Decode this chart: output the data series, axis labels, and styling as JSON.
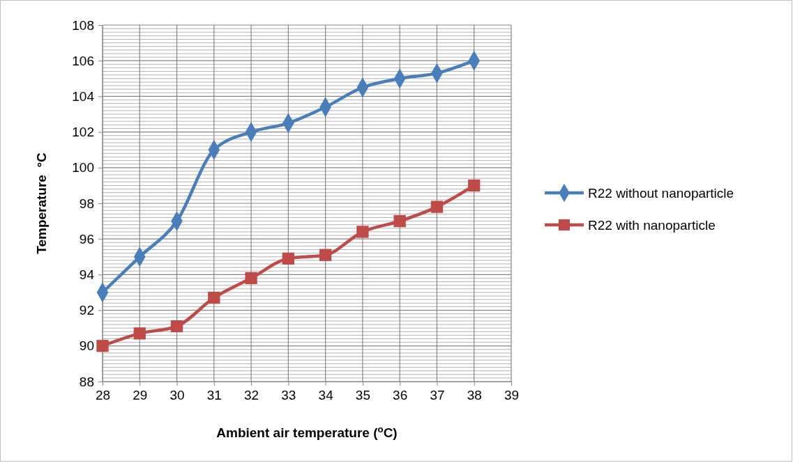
{
  "chart_data": {
    "type": "line",
    "xlabel": "Ambient air temperature ($^{o}$C)",
    "ylabel": "Temperature  °C",
    "x": [
      28,
      29,
      30,
      31,
      32,
      33,
      34,
      35,
      36,
      37,
      38
    ],
    "series": [
      {
        "name": "R22 without nanoparticle",
        "color": "#4a7ebb",
        "marker": "diamond",
        "values": [
          93,
          95,
          97,
          101,
          102,
          102.5,
          103.4,
          104.5,
          105,
          105.3,
          106
        ]
      },
      {
        "name": "R22 with nanoparticle",
        "color": "#be4b48",
        "marker": "square",
        "values": [
          90,
          90.7,
          91.1,
          92.7,
          93.8,
          94.9,
          95.1,
          96.4,
          97,
          97.8,
          99
        ]
      }
    ],
    "xlim": [
      28,
      39
    ],
    "xticks": [
      28,
      29,
      30,
      31,
      32,
      33,
      34,
      35,
      36,
      37,
      38,
      39
    ],
    "ylim": [
      88,
      108
    ],
    "yticks": [
      88,
      90,
      92,
      94,
      96,
      98,
      100,
      102,
      104,
      106,
      108
    ],
    "grid": true,
    "legend": "right"
  }
}
